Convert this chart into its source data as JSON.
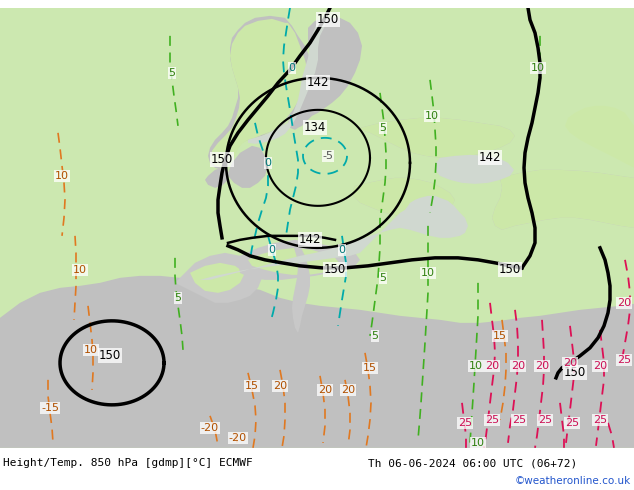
{
  "title_left": "Height/Temp. 850 hPa [gdmp][°C] ECMWF",
  "title_right": "Th 06-06-2024 06:00 UTC (06+72)",
  "credit": "©weatheronline.co.uk",
  "bg_green": "#cce8b0",
  "land_gray": "#b8b8b8",
  "land_light": "#c8c8c8",
  "sea_gray": "#d0d0d0",
  "black_lw": 2.2,
  "contour_lw": 1.4,
  "label_fs": 8,
  "credit_color": "#2255cc"
}
